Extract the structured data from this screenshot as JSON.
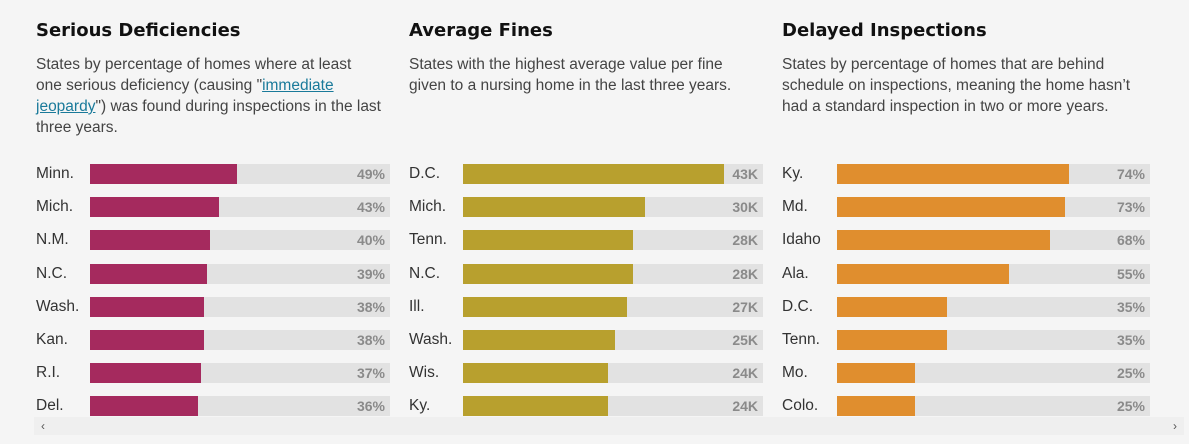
{
  "chart_data": [
    {
      "type": "bar",
      "orientation": "horizontal",
      "title": "Serious Deficiencies",
      "subtitle_parts": [
        "States by percentage of homes where at least one serious deficiency (causing \"",
        "immediate jeopardy",
        "\") was found during inspections in the last three years."
      ],
      "categories": [
        "Minn.",
        "Mich.",
        "N.M.",
        "N.C.",
        "Wash.",
        "Kan.",
        "R.I.",
        "Del."
      ],
      "values": [
        49,
        43,
        40,
        39,
        38,
        38,
        37,
        36
      ],
      "value_labels": [
        "49%",
        "43%",
        "40%",
        "39%",
        "38%",
        "38%",
        "37%",
        "36%"
      ],
      "xlim": [
        0,
        100
      ],
      "color": "#a52a5e"
    },
    {
      "type": "bar",
      "orientation": "horizontal",
      "title": "Average Fines",
      "subtitle_parts": [
        "States with the highest average value per fine given to a nursing home in the last three years."
      ],
      "categories": [
        "D.C.",
        "Mich.",
        "Tenn.",
        "N.C.",
        "Ill.",
        "Wash.",
        "Wis.",
        "Ky."
      ],
      "values": [
        43,
        30,
        28,
        28,
        27,
        25,
        24,
        24
      ],
      "value_labels": [
        "43K",
        "30K",
        "28K",
        "28K",
        "27K",
        "25K",
        "24K",
        "24K"
      ],
      "xlim": [
        0,
        49.5
      ],
      "color": "#b8a02e"
    },
    {
      "type": "bar",
      "orientation": "horizontal",
      "title": "Delayed Inspections",
      "subtitle_parts": [
        "States by percentage of homes that are behind schedule on inspections, meaning the home hasn’t had a standard inspection in two or more years."
      ],
      "categories": [
        "Ky.",
        "Md.",
        "Idaho",
        "Ala.",
        "D.C.",
        "Tenn.",
        "Mo.",
        "Colo."
      ],
      "values": [
        74,
        73,
        68,
        55,
        35,
        35,
        25,
        25
      ],
      "value_labels": [
        "74%",
        "73%",
        "68%",
        "55%",
        "35%",
        "35%",
        "25%",
        "25%"
      ],
      "xlim": [
        0,
        100
      ],
      "color": "#e08e2e"
    }
  ],
  "scrollbar": {
    "left_arrow": "‹",
    "right_arrow": "›"
  }
}
